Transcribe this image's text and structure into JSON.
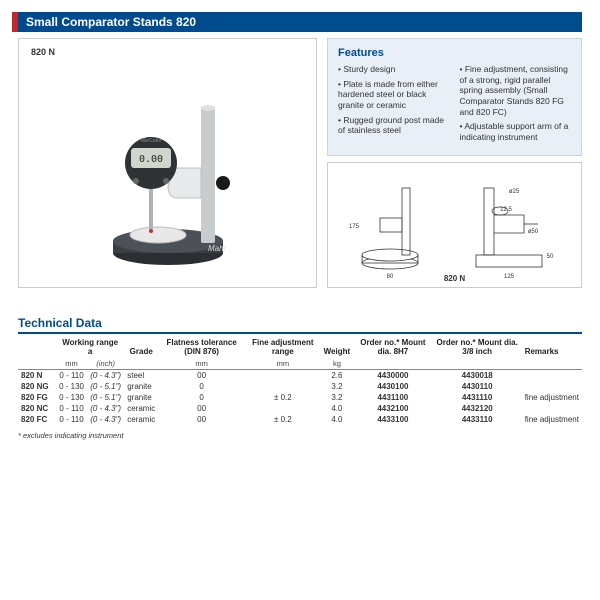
{
  "title": "Small Comparator Stands 820",
  "product": {
    "label": "820 N",
    "brand": "Mahr",
    "display": "0.00"
  },
  "features": {
    "heading": "Features",
    "left": [
      "Sturdy design",
      "Plate is made from either hardened steel or black granite or ceramic",
      "Rugged ground post made of stainless steel"
    ],
    "right": [
      "Fine adjustment, consisting of a strong, rigid parallel spring assembly (Small Comparator Stands 820 FG and 820 FC)",
      "Adjustable support arm of a indicating instrument"
    ]
  },
  "diagram": {
    "label": "820 N",
    "dims": {
      "height": "175",
      "base_w": "80",
      "total_w": "125",
      "depth": "50",
      "arm": "12,5",
      "holder": "ø25",
      "bracket": "ø50"
    }
  },
  "technical": {
    "heading": "Technical Data",
    "columns": {
      "c0": "",
      "c1": "Working range a",
      "c2": "",
      "c3": "Grade",
      "c4": "Flatness tolerance (DIN 876)",
      "c5": "Fine adjustment range",
      "c6": "Weight",
      "c7": "Order no.* Mount dia. 8H7",
      "c8": "Order no.* Mount dia. 3/8 inch",
      "c9": "Remarks"
    },
    "units": {
      "u1": "mm",
      "u2": "(inch)",
      "u3": "",
      "u4": "mm",
      "u5": "mm",
      "u6": "kg"
    },
    "rows": [
      {
        "model": "820 N",
        "mm": "0 - 110",
        "inch": "(0 - 4.3\")",
        "grade": "steel",
        "flat": "00",
        "fine": "",
        "wt": "2.6",
        "o1": "4430000",
        "o2": "4430018",
        "rem": ""
      },
      {
        "model": "820 NG",
        "mm": "0 - 130",
        "inch": "(0 - 5.1\")",
        "grade": "granite",
        "flat": "0",
        "fine": "",
        "wt": "3.2",
        "o1": "4430100",
        "o2": "4430110",
        "rem": ""
      },
      {
        "model": "820 FG",
        "mm": "0 - 130",
        "inch": "(0 - 5.1\")",
        "grade": "granite",
        "flat": "0",
        "fine": "± 0.2",
        "wt": "3.2",
        "o1": "4431100",
        "o2": "4431110",
        "rem": "fine adjustment"
      },
      {
        "model": "820 NC",
        "mm": "0 - 110",
        "inch": "(0 - 4.3\")",
        "grade": "ceramic",
        "flat": "00",
        "fine": "",
        "wt": "4.0",
        "o1": "4432100",
        "o2": "4432120",
        "rem": ""
      },
      {
        "model": "820 FC",
        "mm": "0 - 110",
        "inch": "(0 - 4.3\")",
        "grade": "ceramic",
        "flat": "00",
        "fine": "± 0.2",
        "wt": "4.0",
        "o1": "4433100",
        "o2": "4433110",
        "rem": "fine adjustment"
      }
    ],
    "footnote": "* excludes indicating instrument"
  },
  "style": {
    "brand_blue": "#004b8d",
    "accent_red": "#c1272d",
    "feature_bg": "#e8eff7",
    "page_bg": "#ffffff"
  }
}
